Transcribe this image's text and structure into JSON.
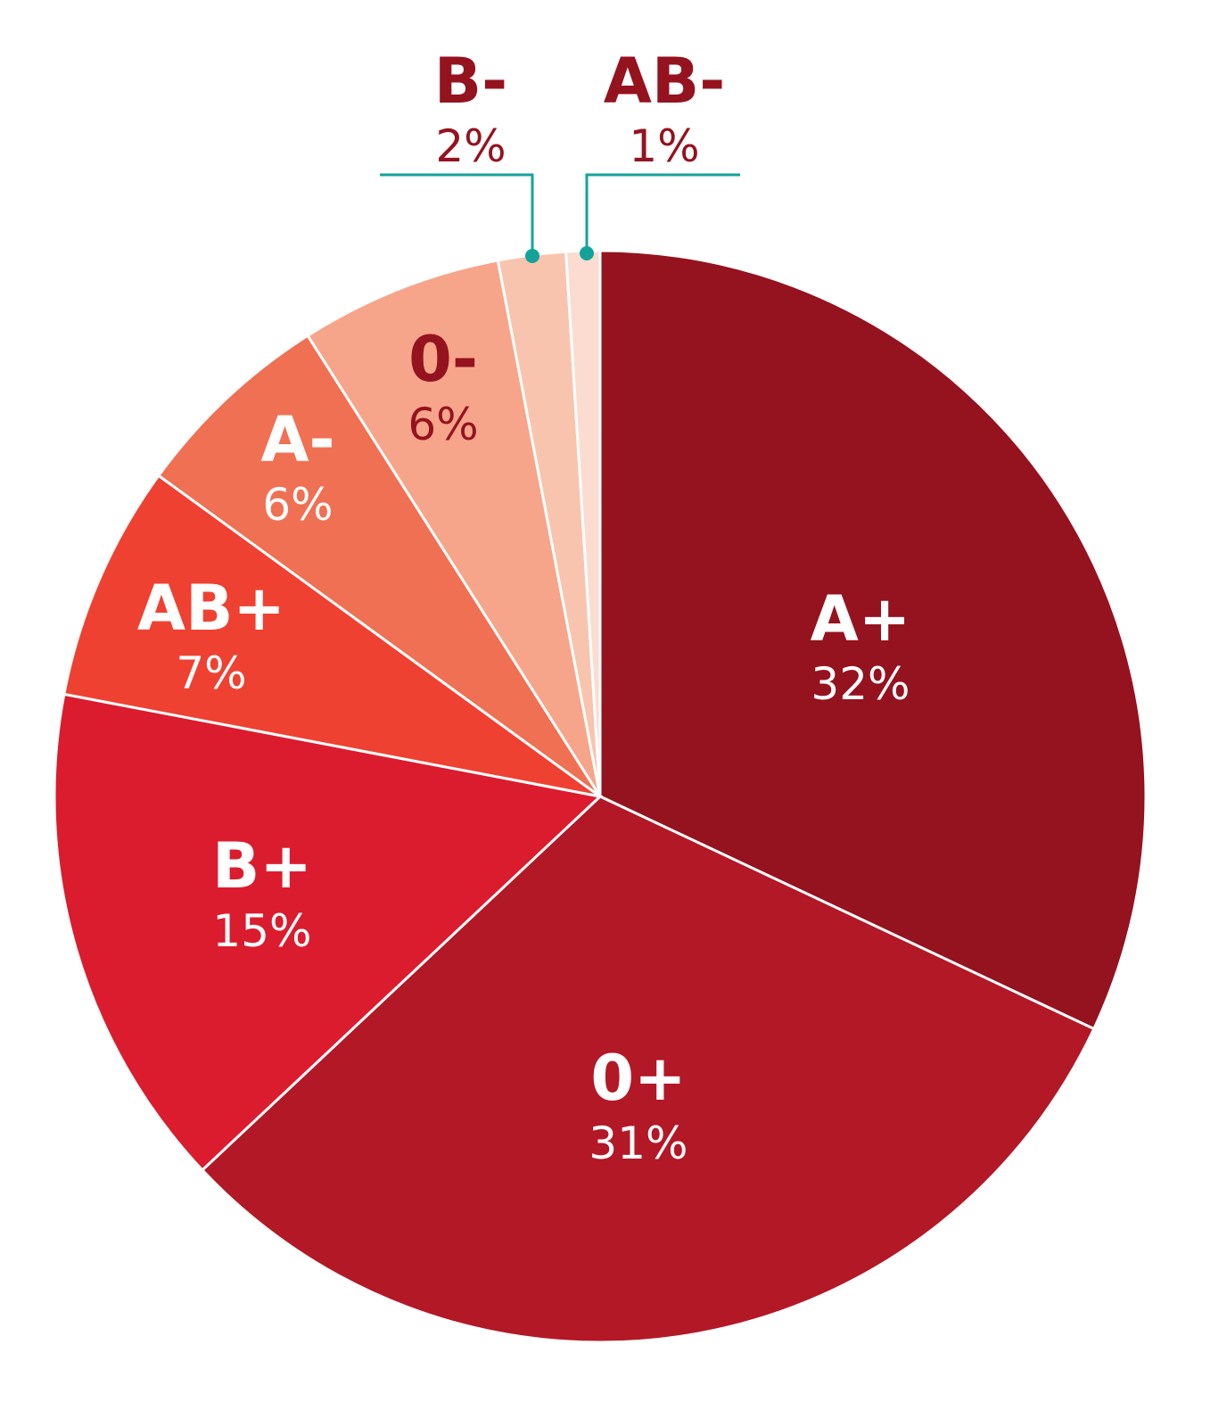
{
  "chart_data": {
    "type": "pie",
    "title": "",
    "start": "top",
    "direction": "clockwise",
    "slices": [
      {
        "label": "A+",
        "value": 32,
        "value_label": "32%",
        "color": "#95121f",
        "text_color": "#ffffff"
      },
      {
        "label": "0+",
        "value": 31,
        "value_label": "31%",
        "color": "#b31826",
        "text_color": "#ffffff"
      },
      {
        "label": "B+",
        "value": 15,
        "value_label": "15%",
        "color": "#db1c2e",
        "text_color": "#ffffff"
      },
      {
        "label": "AB+",
        "value": 7,
        "value_label": "7%",
        "color": "#ef4131",
        "text_color": "#ffffff"
      },
      {
        "label": "A-",
        "value": 6,
        "value_label": "6%",
        "color": "#f07053",
        "text_color": "#ffffff"
      },
      {
        "label": "0-",
        "value": 6,
        "value_label": "6%",
        "color": "#f6a58a",
        "text_color": "#95121f"
      },
      {
        "label": "B-",
        "value": 2,
        "value_label": "2%",
        "color": "#f9c4ae",
        "text_color": "#95121f"
      },
      {
        "label": "AB-",
        "value": 1,
        "value_label": "1%",
        "color": "#fcdcd0",
        "text_color": "#95121f"
      }
    ],
    "leader_color": "#14a39a"
  }
}
